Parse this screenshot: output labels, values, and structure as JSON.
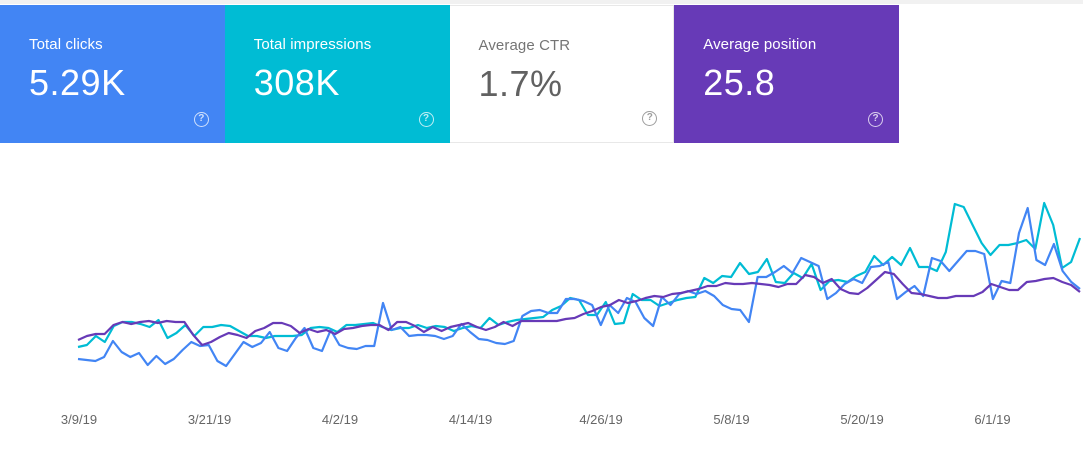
{
  "cards": [
    {
      "label": "Total clicks",
      "value": "5.29K",
      "color": "#4285f4",
      "selected": true,
      "icon": "help-icon"
    },
    {
      "label": "Total impressions",
      "value": "308K",
      "color": "#00bcd4",
      "selected": true,
      "icon": "help-icon"
    },
    {
      "label": "Average CTR",
      "value": "1.7%",
      "color": "#ffffff",
      "selected": false,
      "icon": "help-icon"
    },
    {
      "label": "Average position",
      "value": "25.8",
      "color": "#673ab7",
      "selected": true,
      "icon": "help-icon"
    }
  ],
  "help_glyph": "?",
  "chart_data": {
    "type": "line",
    "grid": false,
    "legend": "none",
    "x_start": "3/9/19",
    "x_end": "6/10/19",
    "x_ticks": [
      "3/9/19",
      "3/21/19",
      "4/2/19",
      "4/14/19",
      "4/26/19",
      "5/8/19",
      "5/20/19",
      "6/1/19"
    ],
    "series": [
      {
        "color": "#00bcd4",
        "values": [
          347,
          345,
          336,
          342,
          326,
          322,
          322,
          324,
          327,
          320,
          338,
          333,
          325,
          336,
          327,
          327,
          325,
          326,
          331,
          336,
          336,
          338,
          336,
          336,
          336,
          335,
          328,
          327,
          328,
          332,
          325,
          325,
          324,
          323,
          327,
          330,
          328,
          328,
          325,
          328,
          326,
          327,
          331,
          328,
          326,
          328,
          318,
          325,
          322,
          320,
          319,
          318,
          317,
          310,
          306,
          298,
          300,
          315,
          315,
          302,
          324,
          323,
          294,
          300,
          300,
          306,
          303,
          300,
          298,
          297,
          278,
          283,
          276,
          277,
          263,
          274,
          272,
          259,
          282,
          283,
          273,
          278,
          264,
          290,
          281,
          280,
          282,
          276,
          272,
          256,
          265,
          257,
          265,
          248,
          267,
          267,
          271,
          252,
          204,
          207,
          225,
          243,
          255,
          245,
          245,
          243,
          240,
          249,
          203,
          225,
          268,
          262,
          238
        ]
      },
      {
        "color": "#4285f4",
        "values": [
          359,
          360,
          361,
          357,
          341,
          352,
          357,
          353,
          365,
          356,
          364,
          359,
          350,
          342,
          346,
          345,
          361,
          366,
          354,
          342,
          347,
          343,
          332,
          348,
          351,
          338,
          328,
          348,
          351,
          330,
          345,
          348,
          349,
          346,
          346,
          303,
          330,
          327,
          336,
          335,
          335,
          336,
          339,
          336,
          324,
          332,
          339,
          340,
          343,
          344,
          341,
          316,
          311,
          310,
          313,
          313,
          299,
          299,
          301,
          305,
          325,
          305,
          313,
          298,
          302,
          318,
          326,
          297,
          305,
          294,
          291,
          294,
          291,
          296,
          305,
          309,
          310,
          322,
          277,
          277,
          272,
          266,
          273,
          258,
          262,
          266,
          299,
          293,
          284,
          279,
          283,
          267,
          266,
          262,
          299,
          292,
          286,
          296,
          258,
          261,
          271,
          261,
          251,
          251,
          254,
          299,
          281,
          283,
          233,
          208,
          260,
          265,
          244,
          271,
          282,
          289
        ]
      },
      {
        "color": "#673ab7",
        "values": [
          340,
          336,
          334,
          334,
          325,
          322,
          324,
          322,
          321,
          323,
          321,
          322,
          322,
          335,
          345,
          342,
          337,
          333,
          335,
          338,
          331,
          328,
          323,
          323,
          326,
          333,
          329,
          332,
          330,
          334,
          329,
          328,
          326,
          325,
          325,
          330,
          322,
          322,
          326,
          332,
          327,
          331,
          327,
          325,
          323,
          327,
          330,
          327,
          322,
          326,
          321,
          321,
          321,
          321,
          321,
          319,
          318,
          314,
          311,
          307,
          305,
          300,
          303,
          301,
          298,
          296,
          297,
          294,
          293,
          291,
          289,
          286,
          286,
          283,
          284,
          284,
          283,
          284,
          285,
          287,
          284,
          284,
          275,
          277,
          283,
          279,
          289,
          293,
          294,
          288,
          280,
          272,
          274,
          284,
          293,
          294,
          296,
          298,
          298,
          296,
          296,
          296,
          292,
          284,
          287,
          290,
          290,
          282,
          281,
          279,
          278,
          282,
          285,
          292
        ]
      }
    ]
  }
}
